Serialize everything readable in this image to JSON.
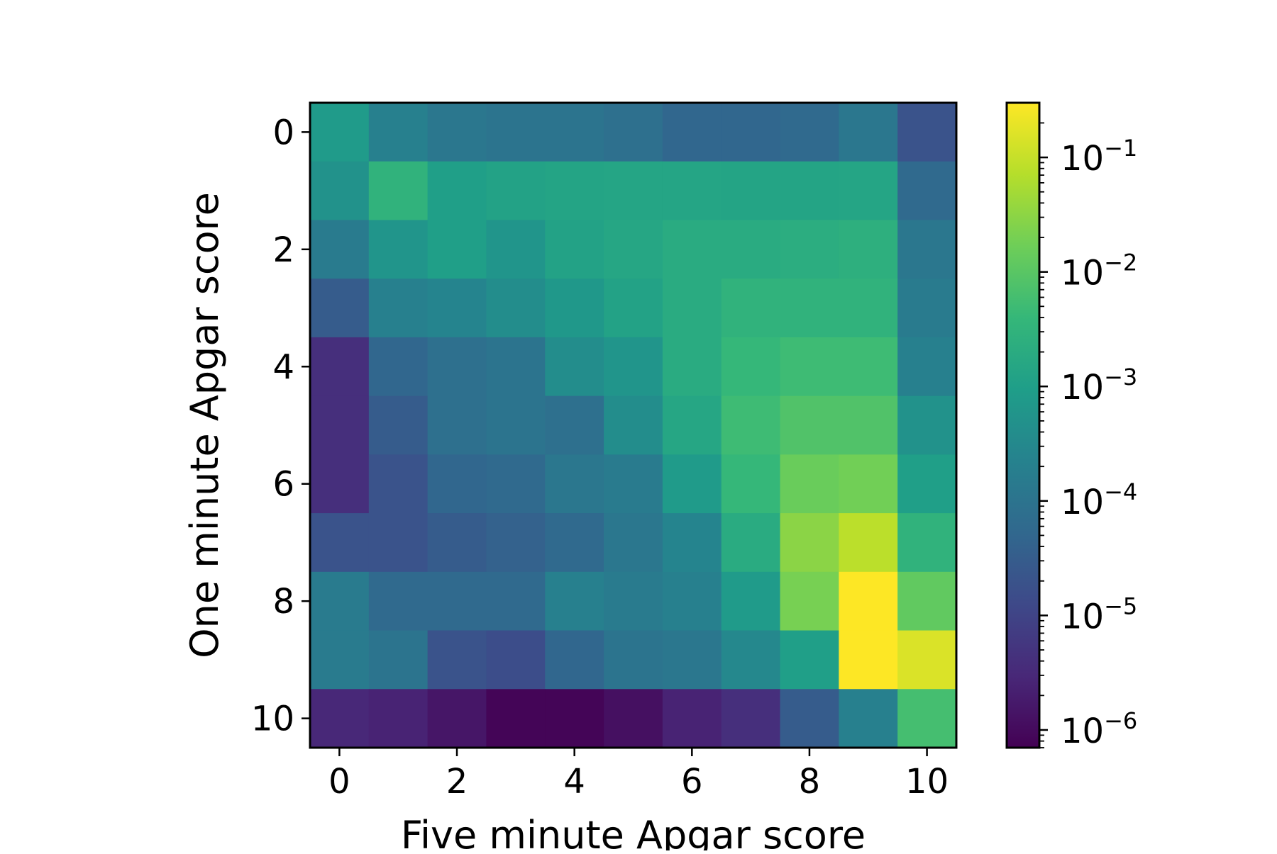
{
  "chart_data": {
    "type": "heatmap",
    "title": "",
    "xlabel": "Five minute Apgar score",
    "ylabel": "One minute Apgar score",
    "x_categories": [
      0,
      1,
      2,
      3,
      4,
      5,
      6,
      7,
      8,
      9,
      10
    ],
    "y_categories": [
      0,
      1,
      2,
      3,
      4,
      5,
      6,
      7,
      8,
      9,
      10
    ],
    "x_tick_labels": [
      "0",
      "2",
      "4",
      "6",
      "8",
      "10"
    ],
    "y_tick_labels": [
      "0",
      "2",
      "4",
      "6",
      "8",
      "10"
    ],
    "colormap": "viridis",
    "color_scale": "log",
    "color_range": [
      7e-07,
      0.3
    ],
    "colorbar_ticks": [
      {
        "value": 1e-06,
        "base": "10",
        "exponent": "−6"
      },
      {
        "value": 1e-05,
        "base": "10",
        "exponent": "−5"
      },
      {
        "value": 0.0001,
        "base": "10",
        "exponent": "−4"
      },
      {
        "value": 0.001,
        "base": "10",
        "exponent": "−3"
      },
      {
        "value": 0.01,
        "base": "10",
        "exponent": "−2"
      },
      {
        "value": 0.1,
        "base": "10",
        "exponent": "−1"
      }
    ],
    "values": [
      [
        0.0008,
        0.0002,
        0.00012,
        0.0001,
        0.0001,
        8e-05,
        5e-05,
        5e-05,
        6e-05,
        0.00012,
        2e-05
      ],
      [
        0.0005,
        0.003,
        0.001,
        0.0012,
        0.0013,
        0.0014,
        0.0014,
        0.0013,
        0.0013,
        0.0014,
        6e-05
      ],
      [
        0.00015,
        0.0006,
        0.001,
        0.0006,
        0.0012,
        0.0015,
        0.002,
        0.002,
        0.0022,
        0.0025,
        0.00012
      ],
      [
        3e-05,
        0.0002,
        0.00025,
        0.0004,
        0.0007,
        0.0012,
        0.002,
        0.003,
        0.003,
        0.003,
        0.00015
      ],
      [
        4e-06,
        5e-05,
        8e-05,
        0.0001,
        0.0004,
        0.0006,
        0.002,
        0.004,
        0.005,
        0.005,
        0.0002
      ],
      [
        4e-06,
        3e-05,
        8e-05,
        0.0001,
        8e-05,
        0.0004,
        0.0015,
        0.005,
        0.008,
        0.008,
        0.0005
      ],
      [
        4e-06,
        2e-05,
        5e-05,
        6e-05,
        0.00012,
        0.00015,
        0.0008,
        0.004,
        0.015,
        0.018,
        0.001
      ],
      [
        2e-05,
        2e-05,
        3e-05,
        4e-05,
        6e-05,
        0.00012,
        0.00025,
        0.002,
        0.03,
        0.08,
        0.003
      ],
      [
        0.00015,
        6e-05,
        6e-05,
        6e-05,
        0.0002,
        0.00015,
        0.0002,
        0.0008,
        0.02,
        0.3,
        0.012
      ],
      [
        0.00015,
        0.0001,
        2e-05,
        1.5e-05,
        5e-05,
        0.0001,
        0.00012,
        0.0003,
        0.001,
        0.3,
        0.15
      ],
      [
        3e-06,
        2.5e-06,
        1.5e-06,
        8e-07,
        8e-07,
        1.2e-06,
        2.5e-06,
        4e-06,
        3e-05,
        0.0002,
        0.006
      ]
    ]
  }
}
